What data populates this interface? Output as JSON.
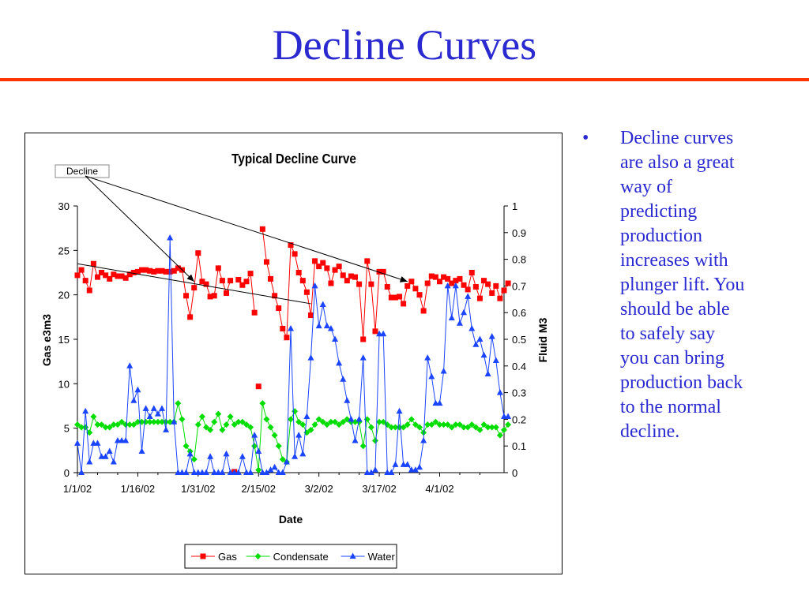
{
  "slide": {
    "title": "Decline Curves",
    "bullet_marker": "•",
    "bullet_text": "Decline curves are also a great way of predicting production increases with plunger lift. You should be able to safely say you can bring production back to the normal decline."
  },
  "chart_data": {
    "type": "line",
    "title": "Typical Decline Curve",
    "xlabel": "Date",
    "ylabel_left": "Gas e3m3",
    "ylabel_right": "Fluid M3",
    "ylim_left": [
      0,
      30
    ],
    "ylim_right": [
      0,
      1
    ],
    "yticks_left": [
      "0",
      "5",
      "10",
      "15",
      "20",
      "25",
      "30"
    ],
    "yticks_right": [
      "0",
      "0.1",
      "0.2",
      "0.3",
      "0.4",
      "0.5",
      "0.6",
      "0.7",
      "0.8",
      "0.9",
      "1"
    ],
    "x_tick_labels": [
      "1/1/02",
      "1/16/02",
      "1/31/02",
      "2/15/02",
      "3/2/02",
      "3/17/02",
      "4/1/02"
    ],
    "x_start_day": 0,
    "x_end_day": 106,
    "legend_position": "bottom",
    "annotation": {
      "text": "Decline",
      "arrow_targets": [
        [
          29,
          21.5
        ],
        [
          82,
          21.5
        ]
      ]
    },
    "decline_line": {
      "from": [
        0,
        23.5
      ],
      "to": [
        58,
        19
      ]
    },
    "series": [
      {
        "name": "Gas",
        "axis": "left",
        "color": "#ff0000",
        "marker": "square",
        "values": [
          22.2,
          22.8,
          21.6,
          20.5,
          23.5,
          22,
          22.5,
          22.2,
          21.8,
          22.3,
          22.1,
          22.1,
          21.9,
          22.3,
          22.5,
          22.6,
          22.8,
          22.8,
          22.7,
          22.6,
          22.7,
          22.7,
          22.6,
          22.6,
          22.7,
          23,
          22.8,
          19.9,
          17.5,
          20.8,
          24.7,
          21.5,
          21.2,
          19.8,
          19.9,
          23,
          21.6,
          20.2,
          21.6,
          0.1,
          21.7,
          21.1,
          21.5,
          22.4,
          18,
          9.7,
          27.4,
          23.7,
          21.8,
          19.9,
          18.5,
          16.2,
          15.2,
          25.6,
          24.6,
          22.5,
          21.6,
          20.3,
          17.7,
          23.8,
          23.2,
          23.6,
          23,
          21.3,
          22.8,
          23.2,
          22.2,
          21.6,
          22.1,
          22,
          21.2,
          15,
          23.8,
          21.2,
          15.9,
          22.6,
          22.6,
          20.9,
          19.7,
          19.7,
          19.8,
          19,
          21,
          21.5,
          20.7,
          20,
          18.2,
          21.3,
          22.1,
          22,
          21.5,
          22,
          21.8,
          21.3,
          21.6,
          21.8,
          21.1,
          20.6,
          22.5,
          20.9,
          19.6,
          21.6,
          21.2,
          20.2,
          21,
          19.6,
          20.5,
          21.3
        ],
        "gaps": [
          [
            38,
            39
          ],
          [
            39,
            40
          ],
          [
            44,
            45
          ],
          [
            45,
            46
          ]
        ]
      },
      {
        "name": "Condensate",
        "axis": "right",
        "color": "#00dd00",
        "marker": "diamond",
        "values": [
          0.18,
          0.17,
          0.17,
          0.15,
          0.21,
          0.18,
          0.18,
          0.17,
          0.17,
          0.18,
          0.18,
          0.19,
          0.18,
          0.18,
          0.18,
          0.19,
          0.19,
          0.19,
          0.19,
          0.19,
          0.19,
          0.19,
          0.19,
          0.19,
          0.19,
          0.26,
          0.2,
          0.1,
          0.08,
          0.05,
          0.18,
          0.21,
          0.17,
          0.16,
          0.19,
          0.22,
          0.16,
          0.18,
          0.21,
          0.18,
          0.19,
          0.19,
          0.18,
          0.17,
          0.1,
          0.01,
          0.26,
          0.2,
          0.17,
          0.14,
          0.1,
          0.05,
          0.04,
          0.2,
          0.23,
          0.19,
          0.18,
          0.15,
          0.16,
          0.18,
          0.2,
          0.19,
          0.18,
          0.19,
          0.19,
          0.18,
          0.19,
          0.2,
          0.19,
          0.19,
          0.19,
          0.1,
          0.2,
          0.17,
          0.12,
          0.19,
          0.19,
          0.18,
          0.17,
          0.17,
          0.17,
          0.17,
          0.18,
          0.2,
          0.18,
          0.17,
          0.15,
          0.18,
          0.18,
          0.19,
          0.18,
          0.18,
          0.18,
          0.17,
          0.18,
          0.18,
          0.17,
          0.17,
          0.18,
          0.17,
          0.16,
          0.18,
          0.17,
          0.17,
          0.17,
          0.14,
          0.16,
          0.18
        ],
        "gaps": []
      },
      {
        "name": "Water",
        "axis": "right",
        "color": "#1a44ff",
        "marker": "triangle",
        "values": [
          0.11,
          0,
          0.23,
          0.04,
          0.11,
          0.11,
          0.06,
          0.06,
          0.08,
          0.04,
          0.12,
          0.12,
          0.12,
          0.4,
          0.27,
          0.31,
          0.08,
          0.24,
          0.21,
          0.24,
          0.22,
          0.24,
          0.16,
          0.88,
          0.19,
          0,
          0,
          0,
          0.07,
          0,
          0,
          0,
          0,
          0.06,
          0,
          0,
          0,
          0.07,
          0,
          0,
          0,
          0.06,
          0,
          0,
          0.14,
          0.08,
          0,
          0,
          0.01,
          0.02,
          0,
          0,
          0.04,
          0.54,
          0.06,
          0.14,
          0.07,
          0.21,
          0.43,
          0.7,
          0.55,
          0.63,
          0.55,
          0.54,
          0.5,
          0.41,
          0.35,
          0.27,
          0.2,
          0.12,
          0.2,
          0.43,
          0,
          0,
          0.01,
          0.52,
          0.52,
          0,
          0,
          0.03,
          0.23,
          0.03,
          0.03,
          0.01,
          0.01,
          0.02,
          0.12,
          0.43,
          0.36,
          0.26,
          0.26,
          0.38,
          0.7,
          0.58,
          0.7,
          0.56,
          0.6,
          0.66,
          0.54,
          0.48,
          0.5,
          0.44,
          0.37,
          0.51,
          0.42,
          0.3,
          0.21,
          0.21
        ],
        "gaps": []
      }
    ]
  }
}
